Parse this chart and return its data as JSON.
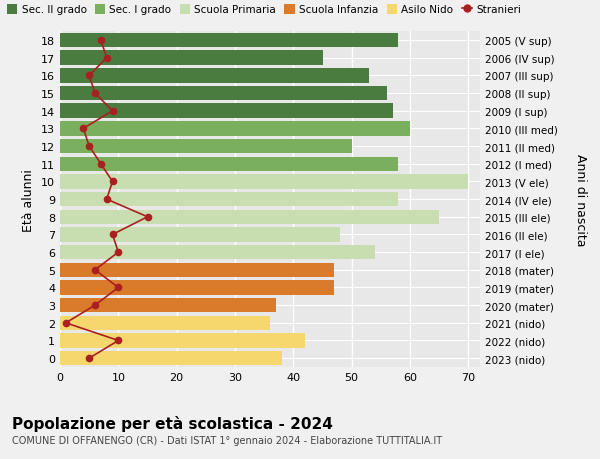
{
  "ages": [
    18,
    17,
    16,
    15,
    14,
    13,
    12,
    11,
    10,
    9,
    8,
    7,
    6,
    5,
    4,
    3,
    2,
    1,
    0
  ],
  "years": [
    "2005 (V sup)",
    "2006 (IV sup)",
    "2007 (III sup)",
    "2008 (II sup)",
    "2009 (I sup)",
    "2010 (III med)",
    "2011 (II med)",
    "2012 (I med)",
    "2013 (V ele)",
    "2014 (IV ele)",
    "2015 (III ele)",
    "2016 (II ele)",
    "2017 (I ele)",
    "2018 (mater)",
    "2019 (mater)",
    "2020 (mater)",
    "2021 (nido)",
    "2022 (nido)",
    "2023 (nido)"
  ],
  "bar_values": [
    58,
    45,
    53,
    56,
    57,
    60,
    50,
    58,
    70,
    58,
    65,
    48,
    54,
    47,
    47,
    37,
    36,
    42,
    38
  ],
  "bar_colors": [
    "#4a7c3f",
    "#4a7c3f",
    "#4a7c3f",
    "#4a7c3f",
    "#4a7c3f",
    "#7aaf5e",
    "#7aaf5e",
    "#7aaf5e",
    "#c8deb0",
    "#c8deb0",
    "#c8deb0",
    "#c8deb0",
    "#c8deb0",
    "#d97b2b",
    "#d97b2b",
    "#d97b2b",
    "#f5d76e",
    "#f5d76e",
    "#f5d76e"
  ],
  "stranieri_values": [
    7,
    8,
    5,
    6,
    9,
    4,
    5,
    7,
    9,
    8,
    15,
    9,
    10,
    6,
    10,
    6,
    1,
    10,
    5
  ],
  "legend_labels": [
    "Sec. II grado",
    "Sec. I grado",
    "Scuola Primaria",
    "Scuola Infanzia",
    "Asilo Nido",
    "Stranieri"
  ],
  "legend_colors": [
    "#4a7c3f",
    "#7aaf5e",
    "#c8deb0",
    "#d97b2b",
    "#f5d76e",
    "#aa1f1f"
  ],
  "left_ylabel": "Età alunni",
  "right_ylabel": "Anni di nascita",
  "title": "Popolazione per età scolastica - 2024",
  "subtitle": "COMUNE DI OFFANENGO (CR) - Dati ISTAT 1° gennaio 2024 - Elaborazione TUTTITALIA.IT",
  "xlim": [
    0,
    72
  ],
  "ylim": [
    -0.5,
    18.5
  ],
  "background_color": "#f0f0f0",
  "plot_bg_color": "#e8e8e8",
  "grid_color": "#ffffff",
  "stranieri_color": "#aa1f1f"
}
